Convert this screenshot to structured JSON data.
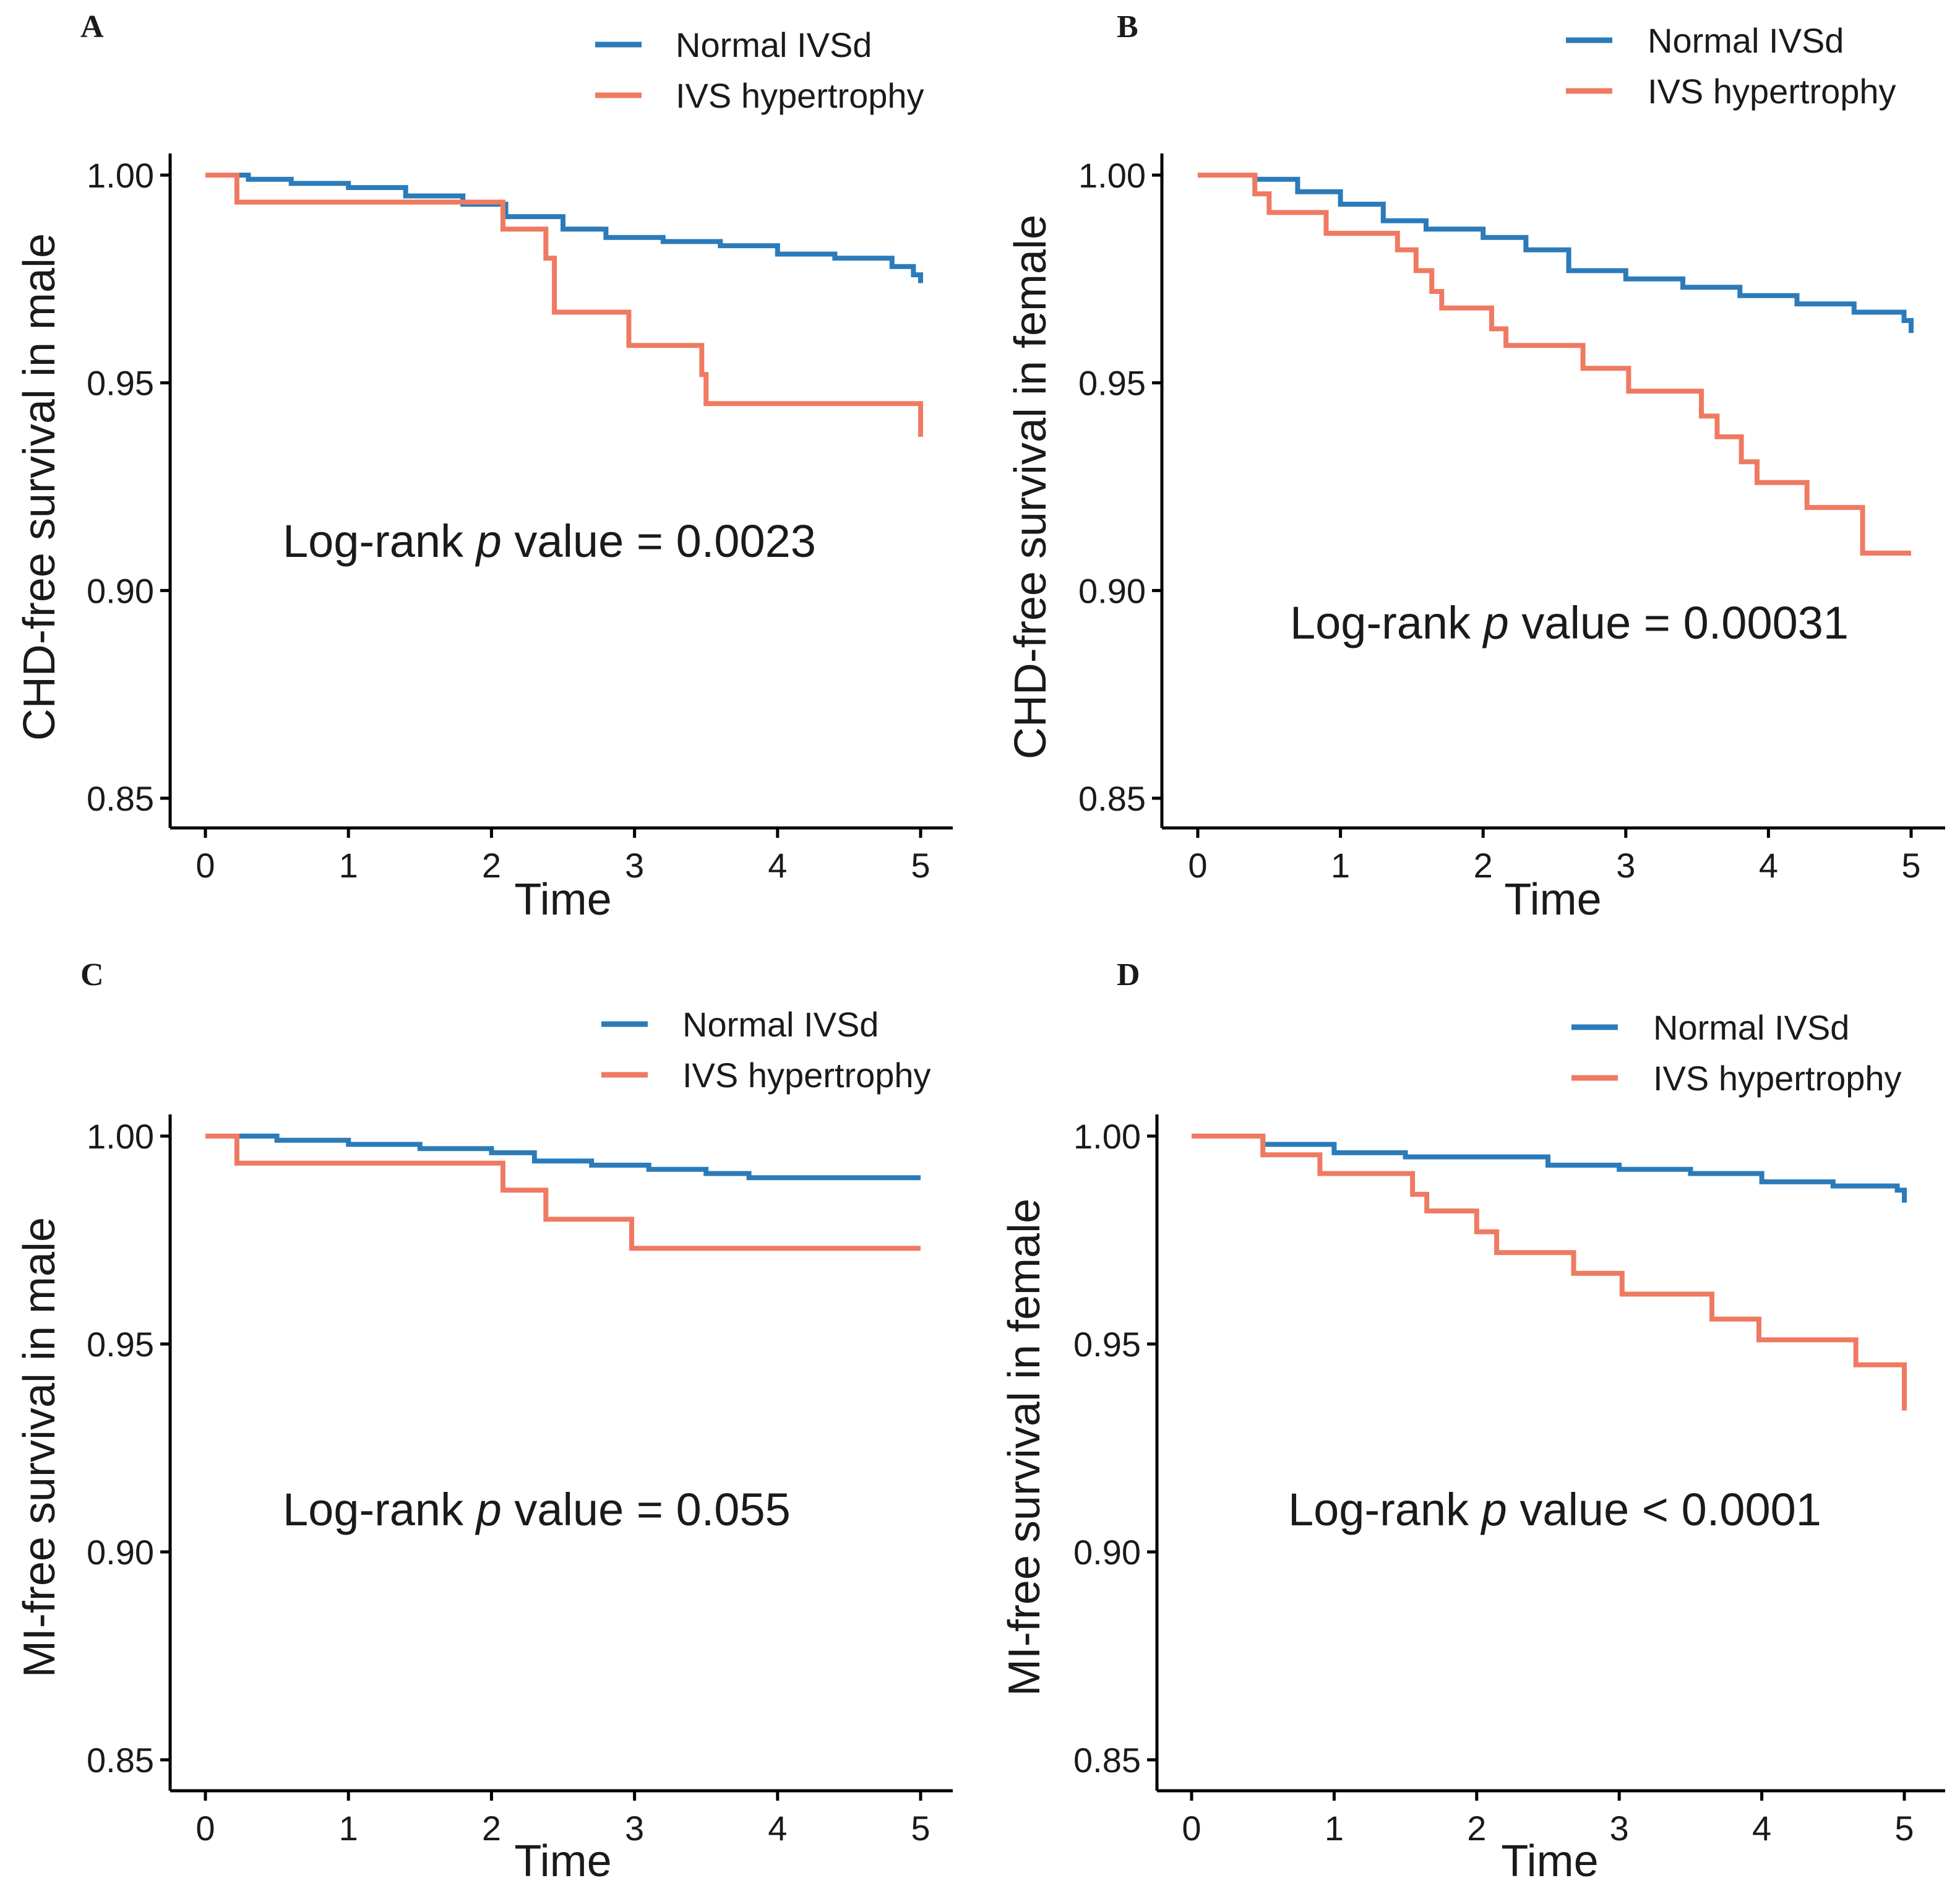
{
  "chart_data": [
    {
      "type": "line",
      "panel": "A",
      "xlabel": "Time",
      "ylabel": "CHD-free survival in male",
      "xlim": [
        0,
        5
      ],
      "ylim": [
        0.85,
        1.0
      ],
      "xticks": [
        "0",
        "1",
        "2",
        "3",
        "4",
        "5"
      ],
      "yticks": [
        "0.85",
        "0.90",
        "0.95",
        "1.00"
      ],
      "legend": [
        "Normal IVSd",
        "IVS hypertrophy"
      ],
      "annotation": {
        "prefix": "Log-rank ",
        "italic": "p",
        "suffix": " value = 0.0023"
      },
      "series": [
        {
          "name": "Normal IVSd",
          "color": "#2b7bba",
          "x": [
            0,
            0.3,
            0.6,
            1.0,
            1.4,
            1.8,
            2.1,
            2.5,
            2.8,
            3.2,
            3.6,
            4.0,
            4.4,
            4.8,
            4.95,
            5.0
          ],
          "y": [
            1.0,
            0.999,
            0.998,
            0.997,
            0.995,
            0.993,
            0.99,
            0.987,
            0.985,
            0.984,
            0.983,
            0.981,
            0.98,
            0.978,
            0.976,
            0.974
          ]
        },
        {
          "name": "IVS hypertrophy",
          "color": "#ef7a62",
          "x": [
            0,
            0.22,
            1.93,
            2.08,
            2.38,
            2.44,
            2.85,
            2.96,
            3.47,
            3.5,
            5.0
          ],
          "y": [
            1.0,
            0.9935,
            0.9935,
            0.987,
            0.98,
            0.967,
            0.967,
            0.959,
            0.952,
            0.945,
            0.937
          ]
        }
      ]
    },
    {
      "type": "line",
      "panel": "B",
      "xlabel": "Time",
      "ylabel": "CHD-free survival in female",
      "xlim": [
        0,
        5
      ],
      "ylim": [
        0.85,
        1.0
      ],
      "xticks": [
        "0",
        "1",
        "2",
        "3",
        "4",
        "5"
      ],
      "yticks": [
        "0.85",
        "0.90",
        "0.95",
        "1.00"
      ],
      "legend": [
        "Normal IVSd",
        "IVS hypertrophy"
      ],
      "annotation": {
        "prefix": "Log-rank ",
        "italic": "p",
        "suffix": " value = 0.00031"
      },
      "series": [
        {
          "name": "Normal IVSd",
          "color": "#2b7bba",
          "x": [
            0,
            0.4,
            0.7,
            1.0,
            1.3,
            1.6,
            2.0,
            2.3,
            2.6,
            3.0,
            3.4,
            3.8,
            4.2,
            4.6,
            4.95,
            5.0
          ],
          "y": [
            1.0,
            0.999,
            0.996,
            0.993,
            0.989,
            0.987,
            0.985,
            0.982,
            0.977,
            0.975,
            0.973,
            0.971,
            0.969,
            0.967,
            0.965,
            0.962
          ]
        },
        {
          "name": "IVS hypertrophy",
          "color": "#ef7a62",
          "x": [
            0,
            0.4,
            0.5,
            0.9,
            1.4,
            1.53,
            1.64,
            1.71,
            2.06,
            2.16,
            2.7,
            3.02,
            3.53,
            3.64,
            3.81,
            3.92,
            4.27,
            4.66,
            5.0
          ],
          "y": [
            1.0,
            0.9955,
            0.991,
            0.986,
            0.982,
            0.977,
            0.972,
            0.968,
            0.963,
            0.959,
            0.9535,
            0.948,
            0.942,
            0.937,
            0.931,
            0.926,
            0.92,
            0.909,
            0.909
          ]
        }
      ]
    },
    {
      "type": "line",
      "panel": "C",
      "xlabel": "Time",
      "ylabel": "MI-free survival in male",
      "xlim": [
        0,
        5
      ],
      "ylim": [
        0.85,
        1.0
      ],
      "xticks": [
        "0",
        "1",
        "2",
        "3",
        "4",
        "5"
      ],
      "yticks": [
        "0.85",
        "0.90",
        "0.95",
        "1.00"
      ],
      "legend": [
        "Normal IVSd",
        "IVS hypertrophy"
      ],
      "annotation": {
        "prefix": "Log-rank ",
        "italic": "p",
        "suffix": " value = 0.055"
      },
      "series": [
        {
          "name": "Normal IVSd",
          "color": "#2b7bba",
          "x": [
            0,
            0.5,
            1.0,
            1.5,
            2.0,
            2.3,
            2.7,
            3.1,
            3.5,
            3.8,
            4.2,
            5.0
          ],
          "y": [
            1.0,
            0.999,
            0.998,
            0.997,
            0.996,
            0.994,
            0.993,
            0.992,
            0.991,
            0.99,
            0.99,
            0.99
          ]
        },
        {
          "name": "IVS hypertrophy",
          "color": "#ef7a62",
          "x": [
            0,
            0.22,
            2.08,
            2.38,
            2.98,
            5.0
          ],
          "y": [
            1.0,
            0.9935,
            0.987,
            0.98,
            0.973,
            0.973
          ]
        }
      ]
    },
    {
      "type": "line",
      "panel": "D",
      "xlabel": "Time",
      "ylabel": "MI-free survival in female",
      "xlim": [
        0,
        5
      ],
      "ylim": [
        0.85,
        1.0
      ],
      "xticks": [
        "0",
        "1",
        "2",
        "3",
        "4",
        "5"
      ],
      "yticks": [
        "0.85",
        "0.90",
        "0.95",
        "1.00"
      ],
      "legend": [
        "Normal IVSd",
        "IVS hypertrophy"
      ],
      "annotation": {
        "prefix": "Log-rank ",
        "italic": "p",
        "suffix": " value < 0.0001"
      },
      "series": [
        {
          "name": "Normal IVSd",
          "color": "#2b7bba",
          "x": [
            0,
            0.5,
            1.0,
            1.5,
            2.0,
            2.5,
            3.0,
            3.5,
            4.0,
            4.5,
            4.95,
            5.0
          ],
          "y": [
            1.0,
            0.998,
            0.996,
            0.995,
            0.995,
            0.993,
            0.992,
            0.991,
            0.989,
            0.988,
            0.987,
            0.984
          ]
        },
        {
          "name": "IVS hypertrophy",
          "color": "#ef7a62",
          "x": [
            0,
            0.5,
            0.9,
            1.55,
            1.65,
            2.0,
            2.14,
            2.68,
            3.02,
            3.65,
            3.98,
            4.66,
            5.0
          ],
          "y": [
            1.0,
            0.9955,
            0.991,
            0.986,
            0.982,
            0.977,
            0.972,
            0.967,
            0.962,
            0.956,
            0.951,
            0.945,
            0.934
          ]
        }
      ]
    }
  ]
}
